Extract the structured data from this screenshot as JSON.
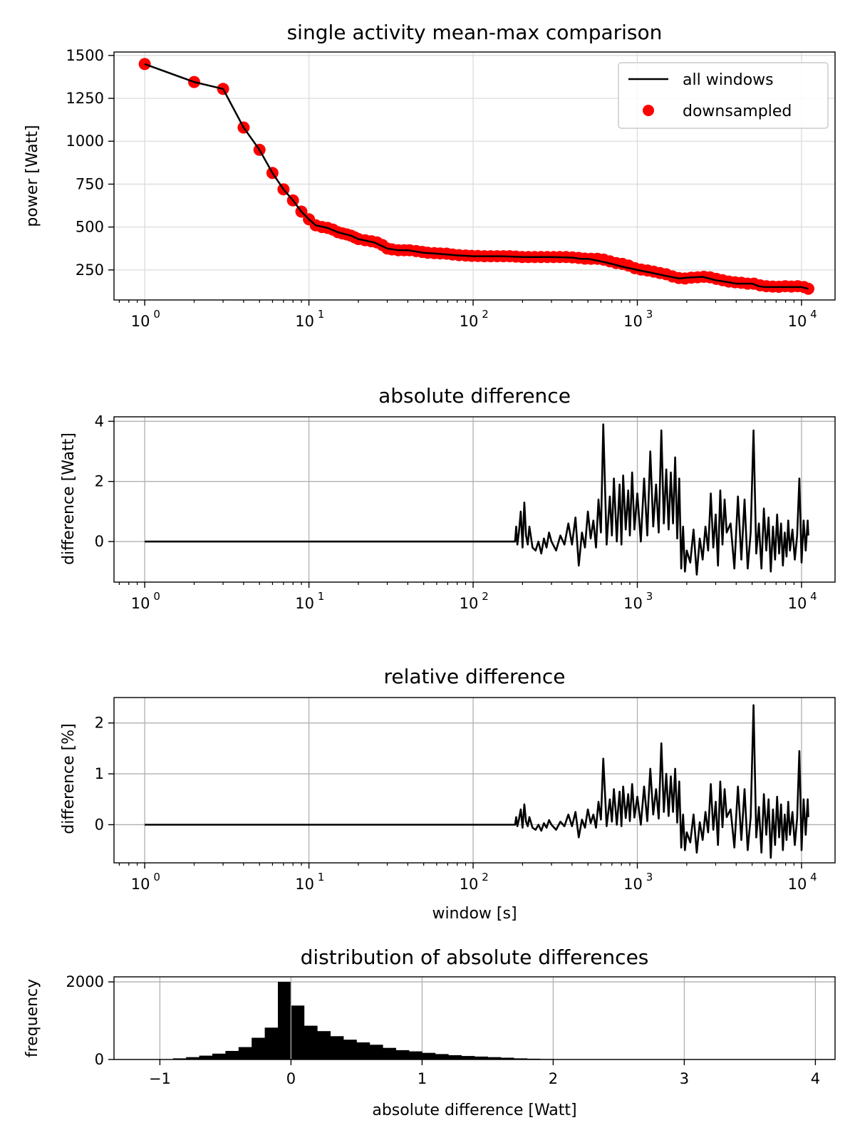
{
  "colors": {
    "line": "#000000",
    "points": "#ff0000",
    "grid": "#b0b0b0",
    "grid_light": "#dcdcdc"
  },
  "chart_data": [
    {
      "id": "power",
      "type": "line+scatter",
      "title": "single activity mean-max comparison",
      "xlabel": "",
      "ylabel": "power [Watt]",
      "xscale": "log",
      "xlim": [
        0.65,
        16000
      ],
      "ylim": [
        75,
        1520
      ],
      "xticks": [
        1,
        10,
        100,
        1000,
        10000
      ],
      "xtick_base": "10",
      "xtick_exps": [
        "0",
        "1",
        "2",
        "3",
        "4"
      ],
      "yticks": [
        250,
        500,
        750,
        1000,
        1250,
        1500
      ],
      "ytick_labels": [
        "250",
        "500",
        "750",
        "1000",
        "1250",
        "1500"
      ],
      "grid": true,
      "legend": {
        "position": "top-right",
        "entries": [
          {
            "label": "all windows",
            "kind": "line"
          },
          {
            "label": "downsampled",
            "kind": "point"
          }
        ]
      },
      "series": [
        {
          "name": "all windows",
          "kind": "line",
          "x": [
            1,
            2,
            3,
            4,
            5,
            6,
            7,
            8,
            9,
            10,
            11,
            13,
            15,
            18,
            20,
            25,
            30,
            35,
            40,
            50,
            60,
            80,
            100,
            150,
            200,
            250,
            300,
            400,
            450,
            500,
            600,
            700,
            800,
            1000,
            1200,
            1500,
            1800,
            2000,
            2500,
            3000,
            3500,
            4000,
            5000,
            5500,
            6000,
            7000,
            8000,
            9000,
            10000,
            11000
          ],
          "y": [
            1450,
            1345,
            1305,
            1080,
            950,
            815,
            720,
            655,
            590,
            545,
            510,
            495,
            470,
            450,
            430,
            410,
            375,
            365,
            365,
            350,
            345,
            335,
            330,
            330,
            325,
            325,
            325,
            322,
            315,
            315,
            300,
            285,
            270,
            250,
            235,
            215,
            200,
            205,
            210,
            190,
            180,
            170,
            170,
            155,
            150,
            150,
            150,
            150,
            150,
            140
          ]
        },
        {
          "name": "downsampled",
          "kind": "scatter",
          "x": [
            1,
            2,
            3,
            4,
            5,
            6,
            7,
            8,
            9,
            10,
            11,
            12,
            13,
            14,
            15,
            16,
            17,
            18,
            19,
            20,
            22,
            24,
            26,
            28,
            30,
            32,
            35,
            38,
            41,
            45,
            49,
            53,
            58,
            63,
            69,
            75,
            82,
            90,
            98,
            107,
            117,
            128,
            140,
            153,
            167,
            182,
            199,
            217,
            237,
            259,
            283,
            309,
            337,
            368,
            402,
            439,
            479,
            523,
            571,
            623,
            680,
            743,
            811,
            885,
            966,
            1055,
            1152,
            1258,
            1373,
            1499,
            1637,
            1787,
            1951,
            2130,
            2326,
            2540,
            2773,
            3027,
            3305,
            3608,
            3939,
            4301,
            4696,
            5127,
            5598,
            6112,
            6673,
            7285,
            7954,
            8684,
            9481,
            10351,
            11000
          ],
          "y": [
            1450,
            1345,
            1305,
            1080,
            950,
            815,
            720,
            655,
            590,
            545,
            510,
            500,
            495,
            485,
            470,
            463,
            457,
            450,
            440,
            430,
            423,
            417,
            410,
            395,
            375,
            370,
            365,
            365,
            365,
            360,
            355,
            350,
            348,
            346,
            345,
            340,
            336,
            334,
            332,
            331,
            330,
            330,
            330,
            330,
            330,
            328,
            325,
            325,
            325,
            325,
            325,
            325,
            325,
            325,
            323,
            320,
            316,
            315,
            315,
            310,
            300,
            290,
            285,
            275,
            260,
            252,
            247,
            240,
            232,
            225,
            212,
            203,
            200,
            205,
            207,
            210,
            207,
            198,
            190,
            182,
            178,
            175,
            170,
            170,
            160,
            155,
            153,
            152,
            155,
            153,
            155,
            150,
            140
          ]
        }
      ]
    },
    {
      "id": "absdiff",
      "type": "line",
      "title": "absolute difference",
      "xlabel": "",
      "ylabel": "difference [Watt]",
      "xscale": "log",
      "xlim": [
        0.65,
        16000
      ],
      "ylim": [
        -1.35,
        4.15
      ],
      "xticks": [
        1,
        10,
        100,
        1000,
        10000
      ],
      "xtick_base": "10",
      "xtick_exps": [
        "0",
        "1",
        "2",
        "3",
        "4"
      ],
      "yticks": [
        0,
        2,
        4
      ],
      "ytick_labels": [
        "0",
        "2",
        "4"
      ],
      "grid": true,
      "series": [
        {
          "name": "absolute difference",
          "kind": "line",
          "x": [
            1,
            180,
            183,
            186,
            190,
            195,
            200,
            205,
            210,
            215,
            220,
            230,
            240,
            250,
            260,
            270,
            280,
            290,
            300,
            320,
            340,
            360,
            380,
            400,
            420,
            440,
            460,
            480,
            500,
            520,
            540,
            560,
            580,
            600,
            620,
            650,
            680,
            700,
            720,
            750,
            780,
            800,
            820,
            850,
            880,
            900,
            930,
            960,
            1000,
            1050,
            1100,
            1150,
            1200,
            1250,
            1300,
            1350,
            1400,
            1450,
            1500,
            1550,
            1600,
            1650,
            1700,
            1750,
            1800,
            1850,
            1900,
            1950,
            2000,
            2100,
            2200,
            2300,
            2400,
            2500,
            2600,
            2700,
            2800,
            2900,
            3000,
            3100,
            3200,
            3300,
            3400,
            3500,
            3700,
            3900,
            4100,
            4300,
            4500,
            4700,
            4900,
            5100,
            5300,
            5500,
            5700,
            5900,
            6100,
            6300,
            6500,
            6700,
            6900,
            7100,
            7300,
            7500,
            7700,
            7900,
            8100,
            8300,
            8500,
            8800,
            9100,
            9400,
            9700,
            10000,
            10300,
            10600,
            10900,
            11000
          ],
          "y": [
            0,
            0,
            0.5,
            -0.1,
            0.3,
            1.0,
            -0.2,
            1.3,
            0.2,
            -0.1,
            0.5,
            -0.2,
            -0.3,
            0.0,
            -0.4,
            0.1,
            -0.2,
            0.3,
            0.0,
            -0.3,
            0.2,
            -0.1,
            0.6,
            -0.1,
            0.8,
            -0.8,
            0.3,
            -0.2,
            1.0,
            0.1,
            0.7,
            -0.2,
            1.4,
            0.3,
            3.9,
            -0.1,
            1.5,
            0.2,
            2.1,
            0.0,
            1.9,
            -0.1,
            2.2,
            0.4,
            1.7,
            0.2,
            2.3,
            0.4,
            1.6,
            0.0,
            2.1,
            0.2,
            3.0,
            0.5,
            1.9,
            0.3,
            3.7,
            0.6,
            2.4,
            0.4,
            2.3,
            0.6,
            2.8,
            0.1,
            2.1,
            -0.9,
            0.5,
            -1.0,
            -0.3,
            -0.7,
            0.4,
            -1.1,
            0.1,
            -0.6,
            0.5,
            -0.3,
            1.6,
            -0.2,
            0.9,
            -0.8,
            1.7,
            -0.1,
            1.4,
            0.3,
            0.6,
            -0.9,
            1.5,
            -0.6,
            1.4,
            -0.9,
            0.3,
            3.7,
            -0.4,
            0.6,
            -0.9,
            1.1,
            -0.3,
            0.8,
            -1.0,
            0.5,
            -0.6,
            0.9,
            -0.4,
            0.6,
            -0.8,
            0.3,
            -0.5,
            0.7,
            -0.3,
            0.4,
            -0.6,
            0.2,
            2.1,
            -0.7,
            0.7,
            -0.3,
            0.7,
            0.2
          ]
        }
      ]
    },
    {
      "id": "reldiff",
      "type": "line",
      "title": "relative difference",
      "xlabel": "window [s]",
      "ylabel": "difference [%]",
      "xscale": "log",
      "xlim": [
        0.65,
        16000
      ],
      "ylim": [
        -0.75,
        2.5
      ],
      "xticks": [
        1,
        10,
        100,
        1000,
        10000
      ],
      "xtick_base": "10",
      "xtick_exps": [
        "0",
        "1",
        "2",
        "3",
        "4"
      ],
      "yticks": [
        0,
        1,
        2
      ],
      "ytick_labels": [
        "0",
        "1",
        "2"
      ],
      "grid": true,
      "series": [
        {
          "name": "relative difference",
          "kind": "line",
          "x": [
            1,
            180,
            183,
            186,
            190,
            195,
            200,
            205,
            210,
            215,
            220,
            230,
            240,
            250,
            260,
            270,
            280,
            290,
            300,
            320,
            340,
            360,
            380,
            400,
            420,
            440,
            460,
            480,
            500,
            520,
            540,
            560,
            580,
            600,
            620,
            650,
            680,
            700,
            720,
            750,
            780,
            800,
            820,
            850,
            880,
            900,
            930,
            960,
            1000,
            1050,
            1100,
            1150,
            1200,
            1250,
            1300,
            1350,
            1400,
            1450,
            1500,
            1550,
            1600,
            1650,
            1700,
            1750,
            1800,
            1850,
            1900,
            1950,
            2000,
            2100,
            2200,
            2300,
            2400,
            2500,
            2600,
            2700,
            2800,
            2900,
            3000,
            3100,
            3200,
            3300,
            3400,
            3500,
            3700,
            3900,
            4100,
            4300,
            4500,
            4700,
            4900,
            5100,
            5300,
            5500,
            5700,
            5900,
            6100,
            6300,
            6500,
            6700,
            6900,
            7100,
            7300,
            7500,
            7700,
            7900,
            8100,
            8300,
            8500,
            8800,
            9100,
            9400,
            9700,
            10000,
            10300,
            10600,
            10900,
            11000
          ],
          "y": [
            0,
            0,
            0.15,
            -0.03,
            0.1,
            0.3,
            -0.06,
            0.4,
            0.06,
            -0.03,
            0.15,
            -0.06,
            -0.1,
            0.0,
            -0.12,
            0.03,
            -0.06,
            0.09,
            0.0,
            -0.1,
            0.06,
            -0.03,
            0.2,
            -0.03,
            0.25,
            -0.25,
            0.1,
            -0.06,
            0.3,
            0.03,
            0.2,
            -0.06,
            0.45,
            0.1,
            1.3,
            -0.03,
            0.5,
            0.06,
            0.7,
            0.0,
            0.65,
            -0.03,
            0.75,
            0.13,
            0.6,
            0.07,
            0.8,
            0.14,
            0.55,
            0.0,
            0.75,
            0.07,
            1.1,
            0.2,
            0.7,
            0.12,
            1.6,
            0.25,
            1.0,
            0.17,
            0.95,
            0.25,
            1.1,
            0.04,
            0.85,
            -0.45,
            0.2,
            -0.5,
            -0.15,
            -0.35,
            0.2,
            -0.55,
            0.05,
            -0.3,
            0.25,
            -0.15,
            0.8,
            -0.1,
            0.45,
            -0.4,
            0.85,
            -0.05,
            0.7,
            0.15,
            0.3,
            -0.45,
            0.75,
            -0.3,
            0.7,
            -0.5,
            0.15,
            2.35,
            -0.25,
            0.35,
            -0.55,
            0.6,
            -0.2,
            0.5,
            -0.65,
            0.3,
            -0.4,
            0.55,
            -0.25,
            0.4,
            -0.5,
            0.2,
            -0.3,
            0.45,
            -0.2,
            0.25,
            -0.4,
            0.13,
            1.45,
            -0.5,
            0.5,
            -0.2,
            0.5,
            0.15
          ]
        }
      ]
    },
    {
      "id": "hist",
      "type": "bar",
      "title": "distribution of absolute differences",
      "xlabel": "absolute difference [Watt]",
      "ylabel": "frequency",
      "xlim": [
        -1.35,
        4.15
      ],
      "ylim": [
        0,
        2130
      ],
      "xticks": [
        -1,
        0,
        1,
        2,
        3,
        4
      ],
      "xtick_labels": [
        "−1",
        "0",
        "1",
        "2",
        "3",
        "4"
      ],
      "yticks": [
        0,
        2000
      ],
      "ytick_labels": [
        "0",
        "2000"
      ],
      "grid": true,
      "bin_width": 0.1,
      "bin_starts": [
        -1.0,
        -0.9,
        -0.8,
        -0.7,
        -0.6,
        -0.5,
        -0.4,
        -0.3,
        -0.2,
        -0.1,
        0.0,
        0.1,
        0.2,
        0.3,
        0.4,
        0.5,
        0.6,
        0.7,
        0.8,
        0.9,
        1.0,
        1.1,
        1.2,
        1.3,
        1.4,
        1.5,
        1.6,
        1.7,
        1.8,
        1.9,
        2.0,
        2.1
      ],
      "values": [
        8,
        30,
        60,
        100,
        150,
        220,
        320,
        560,
        820,
        2000,
        1390,
        870,
        730,
        600,
        510,
        440,
        380,
        300,
        240,
        210,
        170,
        140,
        110,
        90,
        75,
        60,
        45,
        30,
        20,
        12,
        8,
        5
      ]
    }
  ]
}
